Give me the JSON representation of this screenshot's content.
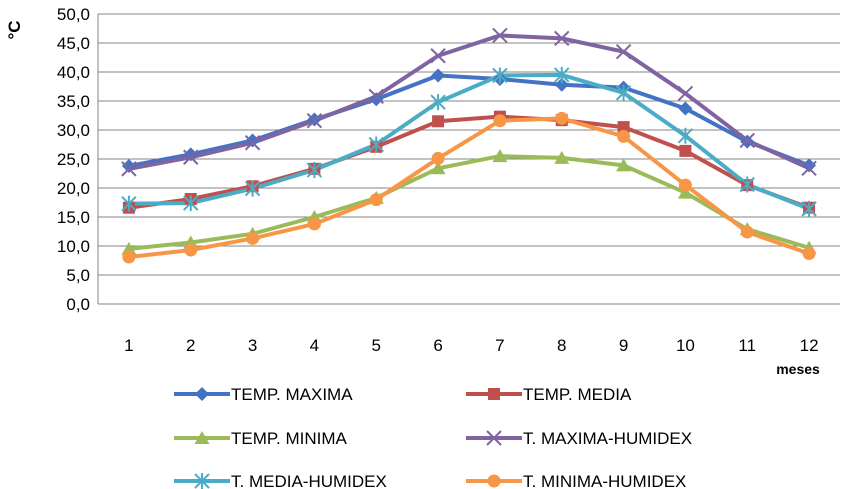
{
  "chart_data": {
    "type": "line",
    "ylabel": "°C",
    "xlabel": "meses",
    "ylim": [
      0,
      50
    ],
    "y_tick_step": 5,
    "y_tick_labels": [
      "0,0",
      "5,0",
      "10,0",
      "15,0",
      "20,0",
      "25,0",
      "30,0",
      "35,0",
      "40,0",
      "45,0",
      "50,0"
    ],
    "grid": "horizontal",
    "legend_position": "bottom",
    "categories": [
      "1",
      "2",
      "3",
      "4",
      "5",
      "6",
      "7",
      "8",
      "9",
      "10",
      "11",
      "12"
    ],
    "series": [
      {
        "name": "TEMP. MAXIMA",
        "color": "#4472C4",
        "marker": "diamond",
        "values": [
          23.8,
          25.8,
          28.2,
          31.8,
          35.3,
          39.4,
          38.8,
          37.8,
          37.3,
          33.7,
          28.0,
          23.9
        ]
      },
      {
        "name": "TEMP. MEDIA",
        "color": "#C0504D",
        "marker": "square",
        "values": [
          16.6,
          18.1,
          20.3,
          23.3,
          27.1,
          31.5,
          32.3,
          31.7,
          30.5,
          26.4,
          20.5,
          16.6
        ]
      },
      {
        "name": "TEMP. MINIMA",
        "color": "#9BBB59",
        "marker": "triangle",
        "values": [
          9.5,
          10.6,
          12.1,
          15.0,
          18.3,
          23.4,
          25.5,
          25.2,
          23.9,
          19.2,
          12.9,
          9.7
        ]
      },
      {
        "name": "T. MAXIMA-HUMIDEX",
        "color": "#8064A2",
        "marker": "x",
        "values": [
          23.3,
          25.3,
          27.8,
          31.6,
          35.8,
          42.8,
          46.3,
          45.8,
          43.5,
          36.3,
          28.2,
          23.4
        ]
      },
      {
        "name": "T. MEDIA-HUMIDEX",
        "color": "#4BACC6",
        "marker": "star",
        "values": [
          17.3,
          17.4,
          19.9,
          23.1,
          27.5,
          34.8,
          39.4,
          39.5,
          36.4,
          29.0,
          20.6,
          16.4
        ]
      },
      {
        "name": "T. MINIMA-HUMIDEX",
        "color": "#F79646",
        "marker": "circle",
        "values": [
          8.1,
          9.3,
          11.3,
          13.8,
          18.0,
          25.1,
          31.6,
          32.0,
          28.9,
          20.5,
          12.4,
          8.7
        ]
      }
    ]
  }
}
